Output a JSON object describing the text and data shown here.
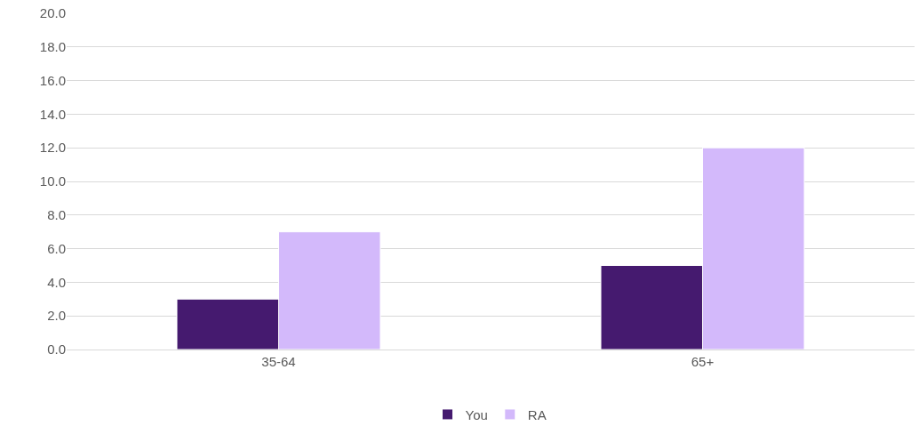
{
  "chart_data": {
    "type": "bar",
    "categories": [
      "35-64",
      "65+"
    ],
    "series": [
      {
        "name": "You",
        "color": "#451a6f",
        "values": [
          3,
          5
        ]
      },
      {
        "name": "RA",
        "color": "#d3b9fb",
        "values": [
          7,
          12
        ]
      }
    ],
    "ylim": [
      0,
      20
    ],
    "yticks": [
      {
        "value": 0,
        "label": "0.0"
      },
      {
        "value": 2,
        "label": "2.0"
      },
      {
        "value": 4,
        "label": "4.0"
      },
      {
        "value": 6,
        "label": "6.0"
      },
      {
        "value": 8,
        "label": "8.0"
      },
      {
        "value": 10,
        "label": "10.0"
      },
      {
        "value": 12,
        "label": "12.0"
      },
      {
        "value": 14,
        "label": "14.0"
      },
      {
        "value": 16,
        "label": "16.0"
      },
      {
        "value": 18,
        "label": "18.0"
      },
      {
        "value": 20,
        "label": "20.0"
      }
    ],
    "grid": "y",
    "legend": "bottom"
  }
}
